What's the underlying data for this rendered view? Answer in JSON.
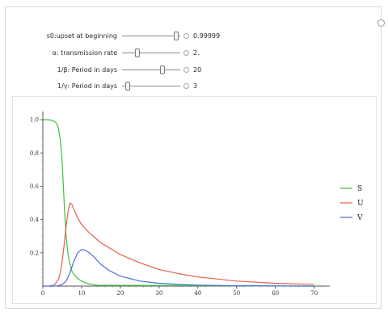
{
  "controls": [
    {
      "label": "s0:upset at beginning",
      "value": "0.99999",
      "position": 0.93
    },
    {
      "label": "α: transmission rate",
      "value": "2.",
      "position": 0.27
    },
    {
      "label": "1/β: Period in days",
      "value": "20",
      "position": 0.7
    },
    {
      "label": "1/γ: Period in days",
      "value": "3",
      "position": 0.1
    }
  ],
  "legend": [
    {
      "label": "S",
      "color": "#3cc13c"
    },
    {
      "label": "U",
      "color": "#e8604a"
    },
    {
      "label": "V",
      "color": "#4a6bd8"
    }
  ],
  "chart_data": {
    "type": "line",
    "x_ticks": [
      "0",
      "10",
      "20",
      "30",
      "40",
      "50",
      "60",
      "70"
    ],
    "y_ticks": [
      "0.2",
      "0.4",
      "0.6",
      "0.8",
      "1.0"
    ],
    "xlim": [
      0,
      73
    ],
    "ylim": [
      0,
      1.02
    ],
    "series": [
      {
        "name": "S",
        "color": "#3cc13c",
        "x": [
          0,
          1,
          2,
          3,
          3.5,
          4,
          4.5,
          5,
          5.3,
          5.6,
          6,
          6.5,
          7,
          7.5,
          8,
          9,
          10,
          11,
          12,
          14,
          70
        ],
        "y": [
          1.0,
          1.0,
          0.998,
          0.99,
          0.98,
          0.95,
          0.88,
          0.74,
          0.6,
          0.46,
          0.3,
          0.19,
          0.13,
          0.09,
          0.07,
          0.045,
          0.03,
          0.02,
          0.012,
          0.005,
          0.0
        ]
      },
      {
        "name": "U",
        "color": "#e8604a",
        "x": [
          0,
          2,
          3,
          4,
          4.5,
          5,
          5.5,
          6,
          6.5,
          7,
          7.5,
          8,
          9,
          10,
          12,
          15,
          20,
          25,
          30,
          35,
          40,
          50,
          60,
          70
        ],
        "y": [
          0,
          0.001,
          0.008,
          0.04,
          0.08,
          0.15,
          0.25,
          0.36,
          0.45,
          0.5,
          0.49,
          0.46,
          0.41,
          0.37,
          0.32,
          0.26,
          0.19,
          0.14,
          0.1,
          0.075,
          0.055,
          0.03,
          0.017,
          0.01
        ]
      },
      {
        "name": "V",
        "color": "#4a6bd8",
        "x": [
          0,
          3,
          4,
          5,
          6,
          7,
          8,
          9,
          10,
          11,
          12,
          13,
          14,
          15,
          17,
          20,
          25,
          30,
          35,
          40,
          50,
          60,
          70
        ],
        "y": [
          0,
          0.0,
          0.002,
          0.01,
          0.03,
          0.08,
          0.15,
          0.2,
          0.22,
          0.215,
          0.2,
          0.18,
          0.155,
          0.13,
          0.095,
          0.06,
          0.03,
          0.017,
          0.01,
          0.006,
          0.002,
          0.001,
          0.0
        ]
      }
    ]
  }
}
